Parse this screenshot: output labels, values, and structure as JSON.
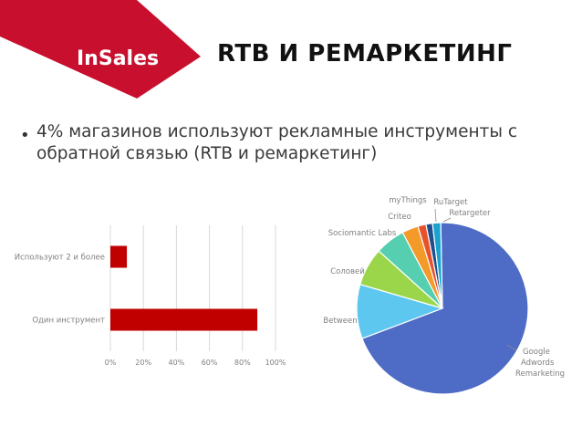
{
  "header": {
    "brand": "InSales",
    "title": "RTB И РЕМАРКЕТИНГ",
    "brand_color": "#c8102e",
    "brand_dark": "#8e0b20"
  },
  "bullet": {
    "text": "4% магазинов используют рекламные инструменты с обратной связью (RTB и ремаркетинг)"
  },
  "chart_data": [
    {
      "type": "bar",
      "orientation": "horizontal",
      "categories": [
        "Используют 2 и более",
        "Один инструмент"
      ],
      "values": [
        10,
        89
      ],
      "xlim": [
        0,
        100
      ],
      "x_ticks": [
        "0%",
        "20%",
        "40%",
        "60%",
        "80%",
        "100%"
      ],
      "grid": true,
      "bar_color": "#c00000"
    },
    {
      "type": "pie",
      "slices": [
        {
          "label": "Google Adwords Remarketing",
          "value": 68,
          "color": "#4e6bc6"
        },
        {
          "label": "Between",
          "value": 10,
          "color": "#5ec7f0"
        },
        {
          "label": "Соловей",
          "value": 7,
          "color": "#9bd64a"
        },
        {
          "label": "Sociomantic Labs",
          "value": 5.5,
          "color": "#55cfb0"
        },
        {
          "label": "Criteo",
          "value": 3,
          "color": "#f39a2b"
        },
        {
          "label": "myThings",
          "value": 1.5,
          "color": "#e5522b"
        },
        {
          "label": "RuTarget",
          "value": 1.2,
          "color": "#1f4f8f"
        },
        {
          "label": "Retargeter",
          "value": 1.5,
          "color": "#1aa3cf"
        }
      ]
    }
  ]
}
